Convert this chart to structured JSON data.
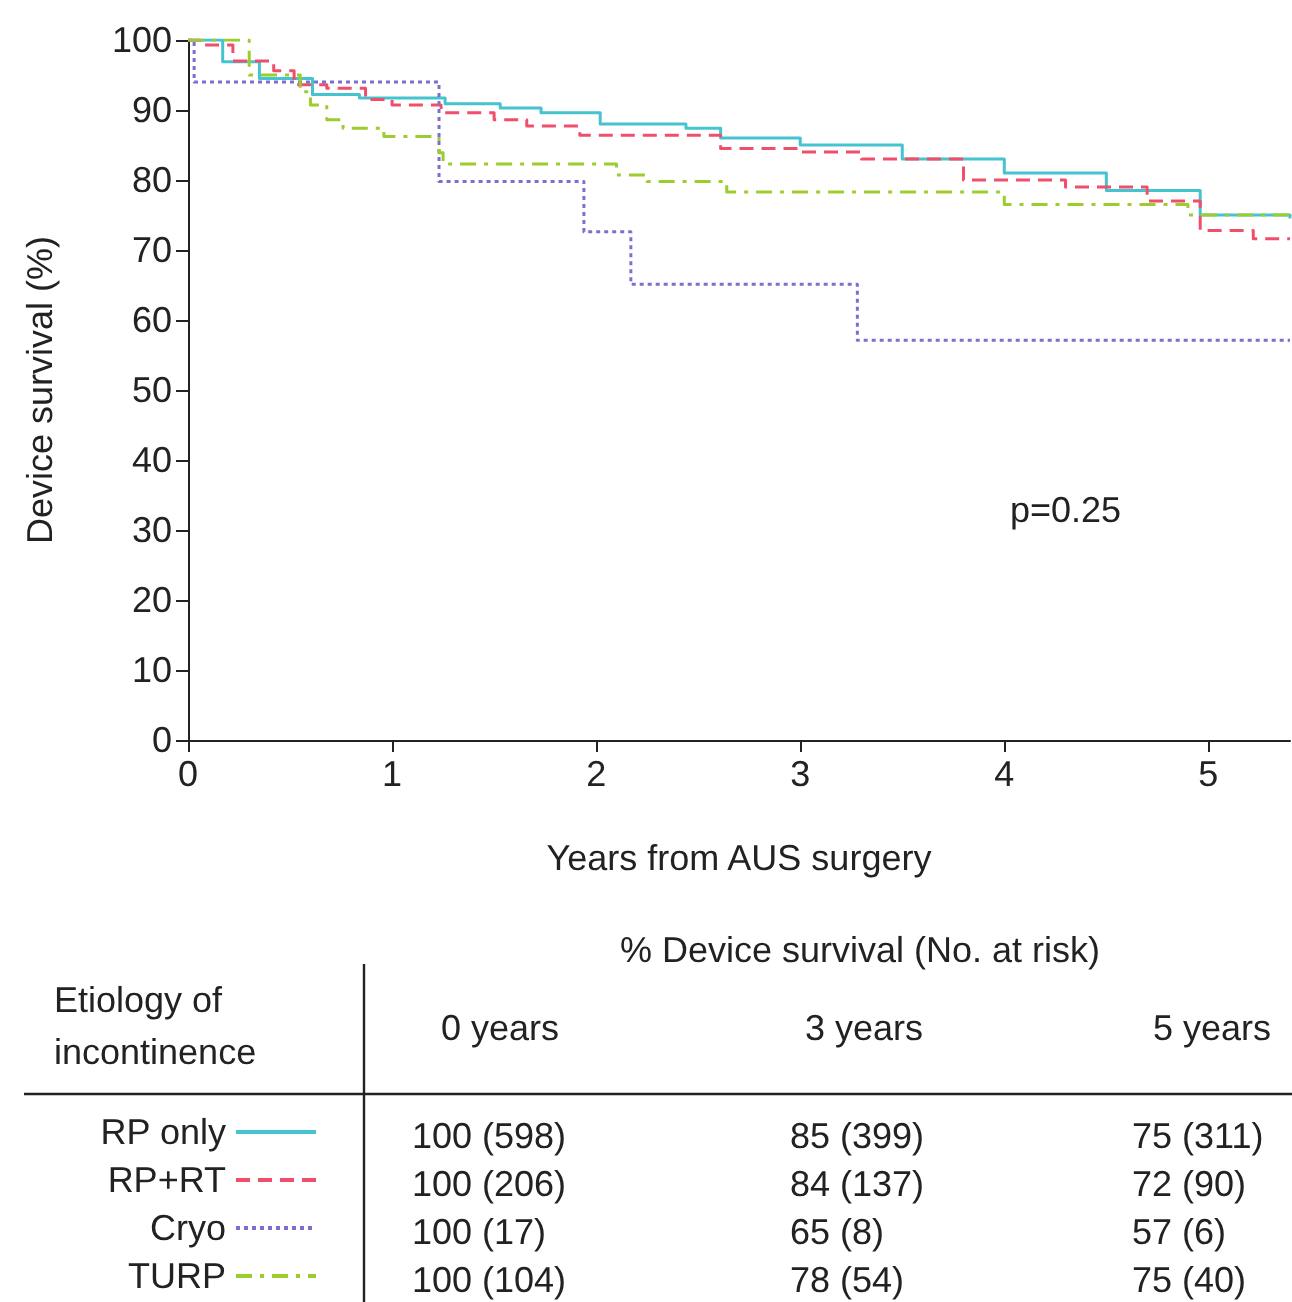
{
  "chart_data": {
    "type": "step",
    "xlabel": "Years from AUS surgery",
    "ylabel": "Device survival (%)",
    "xlim": [
      0,
      5.4
    ],
    "ylim": [
      0,
      100
    ],
    "xticks": [
      0,
      1,
      2,
      3,
      4,
      5
    ],
    "yticks": [
      0,
      10,
      20,
      30,
      40,
      50,
      60,
      70,
      80,
      90,
      100
    ],
    "grid": false,
    "legend": "bottom left",
    "marker": "none",
    "series": [
      {
        "name": "RP only",
        "color": "#45c4cf",
        "line_style": "solid",
        "x": [
          0,
          0.17,
          0.35,
          0.61,
          0.84,
          1.26,
          1.53,
          1.73,
          2.02,
          2.44,
          2.61,
          3.0,
          3.5,
          4.0,
          4.5,
          4.96,
          5.4
        ],
        "values": [
          100,
          96.9,
          94.5,
          92.2,
          91.7,
          90.9,
          90.3,
          89.6,
          88.0,
          87.4,
          86.0,
          85,
          83,
          81,
          78.5,
          75,
          74.5
        ]
      },
      {
        "name": "RP+RT",
        "color": "#ef4f6b",
        "line_style": "dashed",
        "x": [
          0,
          0.06,
          0.22,
          0.42,
          0.52,
          0.68,
          0.87,
          1.0,
          1.24,
          1.5,
          1.66,
          1.92,
          2.61,
          3.0,
          3.3,
          3.8,
          4.3,
          4.7,
          4.96,
          5.22,
          5.4
        ],
        "values": [
          100,
          99.3,
          97,
          95.6,
          93.6,
          93.1,
          91.5,
          90.7,
          89.6,
          88.6,
          87.7,
          86.4,
          84.5,
          84,
          83,
          80,
          79,
          77,
          72.8,
          71.6,
          71.6
        ]
      },
      {
        "name": "Cryo",
        "color": "#7b6fcf",
        "line_style": "dotted",
        "x": [
          0,
          0.03,
          1.23,
          1.94,
          2.17,
          3.28,
          5.4
        ],
        "values": [
          100,
          94,
          79.8,
          72.6,
          65.1,
          57.1,
          57.1
        ]
      },
      {
        "name": "TURP",
        "color": "#9ccc2e",
        "line_style": "dashdot",
        "x": [
          0,
          0.3,
          0.55,
          0.6,
          0.68,
          0.76,
          0.96,
          1.23,
          1.25,
          2.1,
          2.25,
          2.64,
          4.0,
          4.9,
          5.4
        ],
        "values": [
          100,
          95,
          92.6,
          90.7,
          88.6,
          87.4,
          86.2,
          83.9,
          82.3,
          80.7,
          79.8,
          78.3,
          76.5,
          75,
          74.5
        ]
      }
    ],
    "annotations": [
      "p=0.25",
      "% Device survival (No. at risk)",
      "Etiology of\nincontinence",
      "0 years",
      "3 years",
      "5 years",
      "100 (598)",
      "85 (399)",
      "75 (311)",
      "100 (206)",
      "84 (137)",
      "72 (90)",
      "100 (17)",
      "65 (8)",
      "57 (6)",
      "100 (104)",
      "78 (54)",
      "75 (40)"
    ]
  }
}
